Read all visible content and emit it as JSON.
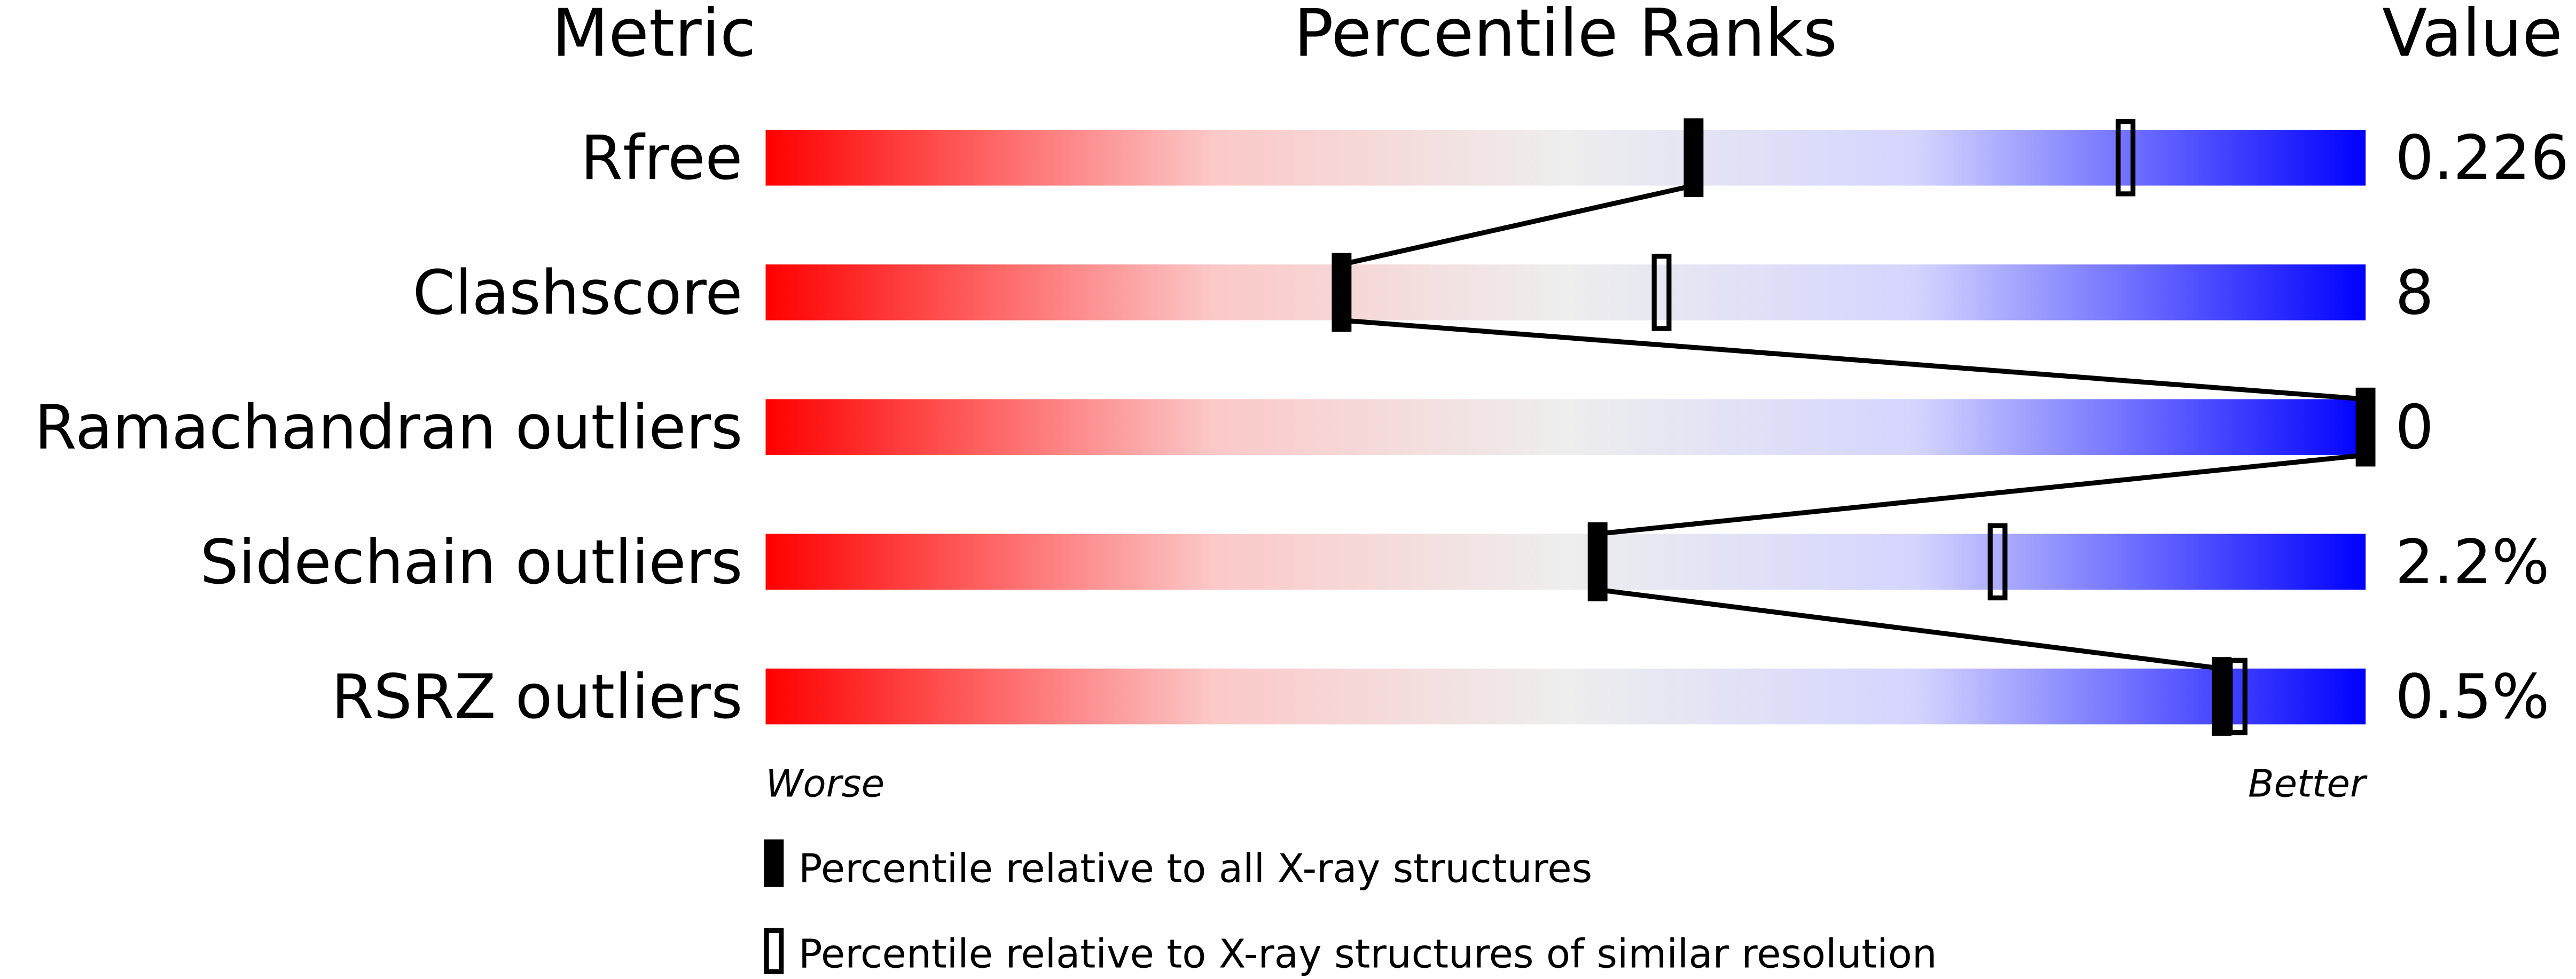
{
  "chart_data": {
    "type": "percentile-slider",
    "headers": {
      "metric": "Metric",
      "ranks": "Percentile Ranks",
      "value": "Value"
    },
    "xlim": [
      0,
      100
    ],
    "axis_labels": {
      "left": "Worse",
      "right": "Better"
    },
    "metrics": [
      {
        "name": "Rfree",
        "value": "0.226",
        "percentile_all": 58,
        "percentile_similar": 85
      },
      {
        "name": "Clashscore",
        "value": "8",
        "percentile_all": 36,
        "percentile_similar": 56
      },
      {
        "name": "Ramachandran outliers",
        "value": "0",
        "percentile_all": 100,
        "percentile_similar": null
      },
      {
        "name": "Sidechain outliers",
        "value": "2.2%",
        "percentile_all": 52,
        "percentile_similar": 77
      },
      {
        "name": "RSRZ outliers",
        "value": "0.5%",
        "percentile_all": 91,
        "percentile_similar": 92
      }
    ],
    "legend": [
      {
        "marker": "filled",
        "label": "Percentile relative to all X-ray structures"
      },
      {
        "marker": "open",
        "label": "Percentile relative to X-ray structures of similar resolution"
      }
    ],
    "colors": {
      "worse": "#ff0000",
      "middle": "#f0f0f0",
      "better": "#0000ff",
      "marker": "#000000"
    }
  }
}
